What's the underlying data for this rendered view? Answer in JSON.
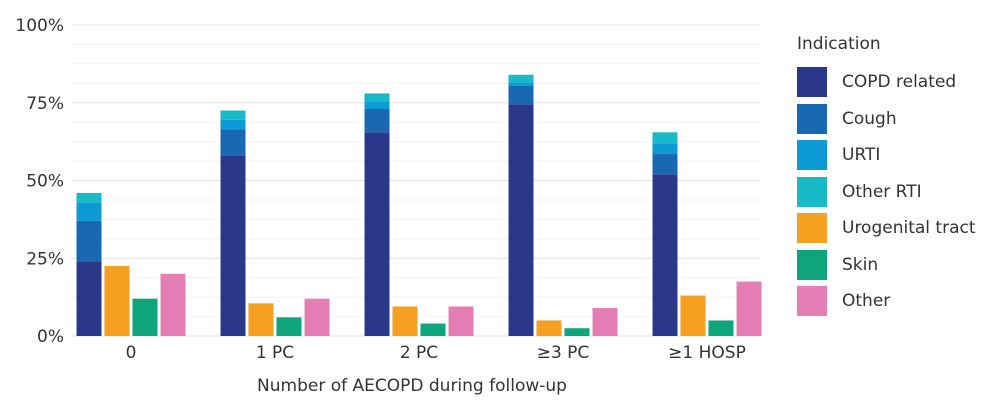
{
  "chart_data": {
    "type": "bar",
    "stacked_first_bar": true,
    "xlabel": "Number of AECOPD during follow-up",
    "ylabel": "",
    "ylim": [
      0,
      100
    ],
    "yticks": [
      "0%",
      "25%",
      "50%",
      "75%",
      "100%"
    ],
    "grid": true,
    "legend": {
      "title": "Indication",
      "placement": "right"
    },
    "categories": [
      "0",
      "1 PC",
      "2 PC",
      "≥3 PC",
      "≥1 HOSP"
    ],
    "series": [
      {
        "name": "COPD related",
        "color": "#2b3788",
        "values": [
          24,
          58,
          65.5,
          74.5,
          52
        ]
      },
      {
        "name": "Cough",
        "color": "#1a67b2",
        "values": [
          13,
          8.5,
          7.5,
          6,
          6.5
        ]
      },
      {
        "name": "URTI",
        "color": "#0e9bd5",
        "values": [
          6,
          3,
          2.5,
          1,
          3.5
        ]
      },
      {
        "name": "Other RTI",
        "color": "#17bac6",
        "values": [
          3,
          3,
          2.5,
          2.5,
          3.5
        ]
      },
      {
        "name": "Urogenital tract",
        "color": "#f5a020",
        "values": [
          22.5,
          10.5,
          9.5,
          5,
          13
        ]
      },
      {
        "name": "Skin",
        "color": "#0ea57c",
        "values": [
          12,
          6,
          4,
          2.5,
          5
        ]
      },
      {
        "name": "Other",
        "color": "#e57eb4",
        "values": [
          20,
          12,
          9.5,
          9,
          17.5
        ]
      }
    ]
  }
}
